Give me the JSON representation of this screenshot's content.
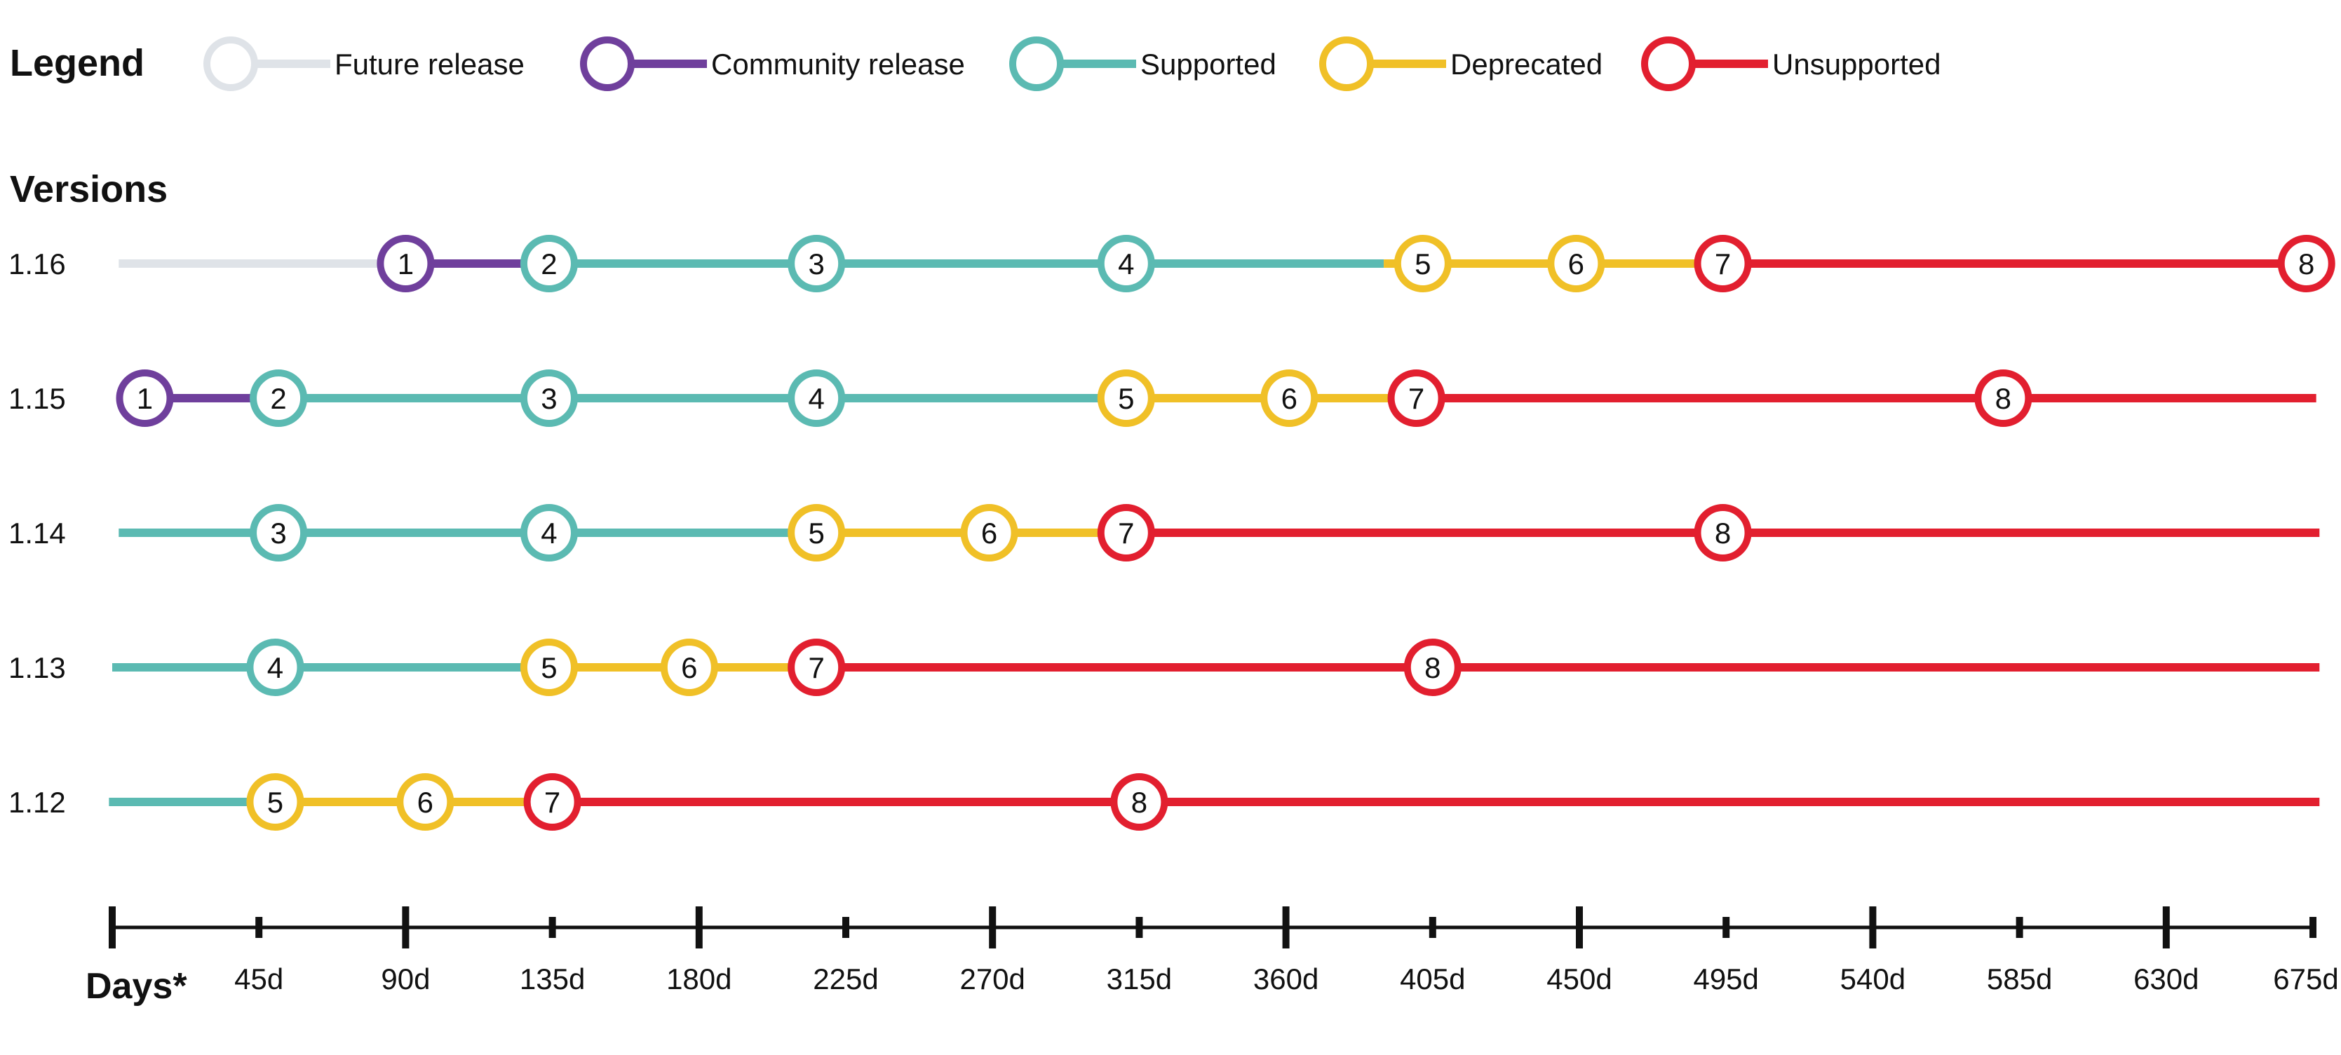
{
  "legend": {
    "title": "Legend",
    "items": [
      {
        "key": "future",
        "label": "Future release",
        "color": "#dfe3e8"
      },
      {
        "key": "community",
        "label": "Community release",
        "color": "#6f3f9c"
      },
      {
        "key": "supported",
        "label": "Supported",
        "color": "#5bbab2"
      },
      {
        "key": "deprecated",
        "label": "Deprecated",
        "color": "#f0c027"
      },
      {
        "key": "unsupported",
        "label": "Unsupported",
        "color": "#e21f2f"
      }
    ]
  },
  "chart_data": {
    "type": "timeline",
    "title": "Versions",
    "xlabel": "Days*",
    "x_ticks_major": [
      0,
      90,
      180,
      270,
      360,
      450,
      540,
      630
    ],
    "x_ticks_minor": [
      45,
      135,
      225,
      315,
      405,
      495,
      585,
      675
    ],
    "x_tick_labels": [
      {
        "day": 45,
        "label": "45d"
      },
      {
        "day": 90,
        "label": "90d"
      },
      {
        "day": 135,
        "label": "135d"
      },
      {
        "day": 180,
        "label": "180d"
      },
      {
        "day": 225,
        "label": "225d"
      },
      {
        "day": 270,
        "label": "270d"
      },
      {
        "day": 315,
        "label": "315d"
      },
      {
        "day": 360,
        "label": "360d"
      },
      {
        "day": 405,
        "label": "405d"
      },
      {
        "day": 450,
        "label": "450d"
      },
      {
        "day": 495,
        "label": "495d"
      },
      {
        "day": 540,
        "label": "540d"
      },
      {
        "day": 585,
        "label": "585d"
      },
      {
        "day": 630,
        "label": "630d"
      },
      {
        "day": 675,
        "label": "675d"
      }
    ],
    "xlim": [
      0,
      675
    ],
    "series": [
      {
        "name": "1.16",
        "segments": [
          {
            "from": 2,
            "to": 90,
            "status": "future"
          },
          {
            "from": 90,
            "to": 134,
            "status": "community"
          },
          {
            "from": 134,
            "to": 390,
            "status": "supported"
          },
          {
            "from": 390,
            "to": 495,
            "status": "deprecated"
          },
          {
            "from": 495,
            "to": 673,
            "status": "unsupported"
          }
        ],
        "milestones": [
          {
            "n": "1",
            "day": 90,
            "status": "community"
          },
          {
            "n": "2",
            "day": 134,
            "status": "supported"
          },
          {
            "n": "3",
            "day": 216,
            "status": "supported"
          },
          {
            "n": "4",
            "day": 311,
            "status": "supported"
          },
          {
            "n": "5",
            "day": 402,
            "status": "deprecated"
          },
          {
            "n": "6",
            "day": 449,
            "status": "deprecated"
          },
          {
            "n": "7",
            "day": 494,
            "status": "unsupported"
          },
          {
            "n": "8",
            "day": 673,
            "status": "unsupported"
          }
        ]
      },
      {
        "name": "1.15",
        "segments": [
          {
            "from": 10,
            "to": 51,
            "status": "community"
          },
          {
            "from": 51,
            "to": 311,
            "status": "supported"
          },
          {
            "from": 311,
            "to": 400,
            "status": "deprecated"
          },
          {
            "from": 400,
            "to": 676,
            "status": "unsupported"
          }
        ],
        "milestones": [
          {
            "n": "1",
            "day": 10,
            "status": "community"
          },
          {
            "n": "2",
            "day": 51,
            "status": "supported"
          },
          {
            "n": "3",
            "day": 134,
            "status": "supported"
          },
          {
            "n": "4",
            "day": 216,
            "status": "supported"
          },
          {
            "n": "5",
            "day": 311,
            "status": "deprecated"
          },
          {
            "n": "6",
            "day": 361,
            "status": "deprecated"
          },
          {
            "n": "7",
            "day": 400,
            "status": "unsupported"
          },
          {
            "n": "8",
            "day": 580,
            "status": "unsupported"
          }
        ]
      },
      {
        "name": "1.14",
        "segments": [
          {
            "from": 2,
            "to": 216,
            "status": "supported"
          },
          {
            "from": 216,
            "to": 311,
            "status": "deprecated"
          },
          {
            "from": 311,
            "to": 677,
            "status": "unsupported"
          }
        ],
        "milestones": [
          {
            "n": "3",
            "day": 51,
            "status": "supported"
          },
          {
            "n": "4",
            "day": 134,
            "status": "supported"
          },
          {
            "n": "5",
            "day": 216,
            "status": "deprecated"
          },
          {
            "n": "6",
            "day": 269,
            "status": "deprecated"
          },
          {
            "n": "7",
            "day": 311,
            "status": "unsupported"
          },
          {
            "n": "8",
            "day": 494,
            "status": "unsupported"
          }
        ]
      },
      {
        "name": "1.13",
        "segments": [
          {
            "from": 0,
            "to": 134,
            "status": "supported"
          },
          {
            "from": 134,
            "to": 216,
            "status": "deprecated"
          },
          {
            "from": 216,
            "to": 677,
            "status": "unsupported"
          }
        ],
        "milestones": [
          {
            "n": "4",
            "day": 50,
            "status": "supported"
          },
          {
            "n": "5",
            "day": 134,
            "status": "deprecated"
          },
          {
            "n": "6",
            "day": 177,
            "status": "deprecated"
          },
          {
            "n": "7",
            "day": 216,
            "status": "unsupported"
          },
          {
            "n": "8",
            "day": 405,
            "status": "unsupported"
          }
        ]
      },
      {
        "name": "1.12",
        "segments": [
          {
            "from": -1,
            "to": 50,
            "status": "supported"
          },
          {
            "from": 50,
            "to": 135,
            "status": "deprecated"
          },
          {
            "from": 135,
            "to": 677,
            "status": "unsupported"
          }
        ],
        "milestones": [
          {
            "n": "5",
            "day": 50,
            "status": "deprecated"
          },
          {
            "n": "6",
            "day": 96,
            "status": "deprecated"
          },
          {
            "n": "7",
            "day": 135,
            "status": "unsupported"
          },
          {
            "n": "8",
            "day": 315,
            "status": "unsupported"
          }
        ]
      }
    ]
  }
}
